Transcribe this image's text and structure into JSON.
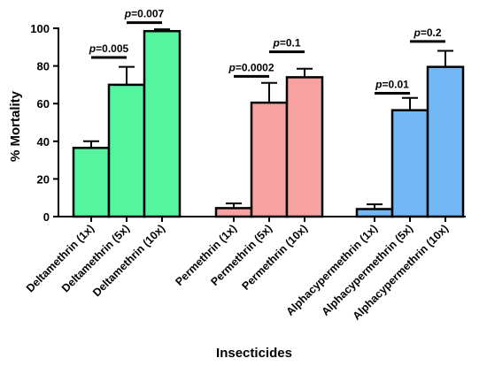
{
  "chart_data": {
    "type": "bar",
    "xlabel": "Insecticides",
    "ylabel": "% Mortality",
    "ylim": [
      0,
      100
    ],
    "yticks": [
      0,
      20,
      40,
      60,
      80,
      100
    ],
    "groups": [
      {
        "color": "#55f59f",
        "bars": [
          {
            "category": "Deltamethrin (1x)",
            "value": 36.5,
            "error": 3.5
          },
          {
            "category": "Deltamethrin (5x)",
            "value": 70,
            "error": 9.5
          },
          {
            "category": "Deltamethrin (10x)",
            "value": 98.5,
            "error": 1
          }
        ]
      },
      {
        "color": "#f8a1a1",
        "bars": [
          {
            "category": "Permethrin (1x)",
            "value": 4.5,
            "error": 2.5
          },
          {
            "category": "Permethrin (5x)",
            "value": 60.5,
            "error": 10.5
          },
          {
            "category": "Permethrin (10x)",
            "value": 74,
            "error": 4.5
          }
        ]
      },
      {
        "color": "#73b8f6",
        "bars": [
          {
            "category": "Alphacypermethrin (1x)",
            "value": 4,
            "error": 2.5
          },
          {
            "category": "Alphacypermethrin (5x)",
            "value": 56.5,
            "error": 6.5
          },
          {
            "category": "Alphacypermethrin (10x)",
            "value": 79.5,
            "error": 8.5
          }
        ]
      }
    ],
    "annotations": [
      {
        "from": 0,
        "to": 1,
        "y": 84.5,
        "p_prefix": "p",
        "p_value": "=0.005"
      },
      {
        "from": 1,
        "to": 2,
        "y": 103,
        "p_prefix": "p",
        "p_value": "=0.007"
      },
      {
        "from": 3,
        "to": 4,
        "y": 74.5,
        "p_prefix": "p",
        "p_value": "=0.0002"
      },
      {
        "from": 4,
        "to": 5,
        "y": 87.5,
        "p_prefix": "p",
        "p_value": "=0.1"
      },
      {
        "from": 6,
        "to": 7,
        "y": 65.5,
        "p_prefix": "p",
        "p_value": "=0.01"
      },
      {
        "from": 7,
        "to": 8,
        "y": 93,
        "p_prefix": "p",
        "p_value": "=0.2"
      }
    ]
  }
}
